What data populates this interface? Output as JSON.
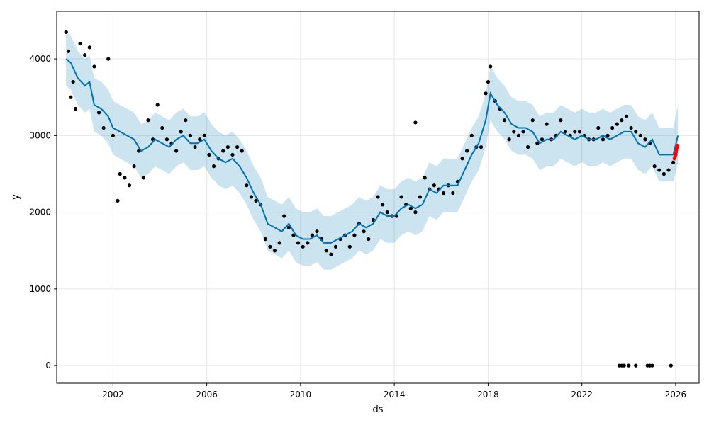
{
  "chart_data": {
    "type": "line",
    "title": "",
    "xlabel": "ds",
    "ylabel": "y",
    "xlim": [
      1999.6,
      2027.0
    ],
    "ylim": [
      -230,
      4620
    ],
    "grid": true,
    "x_ticks": [
      2002,
      2006,
      2010,
      2014,
      2018,
      2022,
      2026
    ],
    "x_tick_labels": [
      "2002",
      "2006",
      "2010",
      "2014",
      "2018",
      "2022",
      "2026"
    ],
    "y_ticks": [
      0,
      1000,
      2000,
      3000,
      4000
    ],
    "y_tick_labels": [
      "0",
      "1000",
      "2000",
      "3000",
      "4000"
    ],
    "colors": {
      "observed": "#000000",
      "forecast_line": "#0072B2",
      "uncertainty": "#0072B2",
      "future_points": "#ff0000"
    },
    "series": [
      {
        "kind": "observed_points",
        "x": [
          2000.0,
          2000.1,
          2000.2,
          2000.3,
          2000.4,
          2000.6,
          2000.8,
          2001.0,
          2001.2,
          2001.4,
          2001.6,
          2001.8,
          2002.0,
          2002.2,
          2002.3,
          2002.5,
          2002.7,
          2002.9,
          2003.1,
          2003.3,
          2003.5,
          2003.7,
          2003.9,
          2004.1,
          2004.3,
          2004.5,
          2004.7,
          2004.9,
          2005.1,
          2005.3,
          2005.5,
          2005.7,
          2005.9,
          2006.1,
          2006.3,
          2006.5,
          2006.7,
          2006.9,
          2007.1,
          2007.3,
          2007.5,
          2007.7,
          2007.9,
          2008.1,
          2008.3,
          2008.5,
          2008.7,
          2008.9,
          2009.1,
          2009.3,
          2009.5,
          2009.7,
          2009.9,
          2010.1,
          2010.3,
          2010.5,
          2010.7,
          2010.9,
          2011.1,
          2011.3,
          2011.5,
          2011.7,
          2011.9,
          2012.1,
          2012.3,
          2012.5,
          2012.7,
          2012.9,
          2013.1,
          2013.3,
          2013.5,
          2013.7,
          2013.9,
          2014.1,
          2014.3,
          2014.5,
          2014.7,
          2014.9,
          2015.1,
          2015.3,
          2015.5,
          2015.7,
          2015.9,
          2016.1,
          2016.3,
          2016.5,
          2016.7,
          2016.9,
          2017.1,
          2017.3,
          2017.5,
          2017.7,
          2017.9,
          2018.0,
          2018.1,
          2018.3,
          2018.5,
          2018.7,
          2018.9,
          2019.1,
          2019.3,
          2019.5,
          2019.7,
          2019.9,
          2020.1,
          2020.3,
          2020.5,
          2020.7,
          2020.9,
          2021.1,
          2021.3,
          2021.5,
          2021.7,
          2021.9,
          2022.1,
          2022.3,
          2022.5,
          2022.7,
          2022.9,
          2023.1,
          2023.3,
          2023.5,
          2023.7,
          2023.9,
          2024.1,
          2024.3,
          2024.5,
          2024.7,
          2024.9,
          2025.1,
          2025.3,
          2025.5,
          2025.7,
          2025.9,
          2026.0
        ],
        "y": [
          4350,
          4100,
          3500,
          3700,
          3350,
          4200,
          4050,
          4150,
          3900,
          3300,
          3100,
          4000,
          3000,
          2150,
          2500,
          2450,
          2350,
          2600,
          2800,
          2450,
          3200,
          2950,
          3400,
          3100,
          2950,
          2900,
          2800,
          3050,
          3200,
          3000,
          2850,
          2950,
          3000,
          2750,
          2600,
          2700,
          2800,
          2850,
          2750,
          2850,
          2800,
          2350,
          2200,
          2150,
          2100,
          1650,
          1550,
          1500,
          1600,
          1950,
          1800,
          1700,
          1600,
          1550,
          1600,
          1700,
          1750,
          1650,
          1500,
          1450,
          1550,
          1650,
          1700,
          1550,
          1700,
          1850,
          1750,
          1650,
          1900,
          2200,
          2100,
          2000,
          1950,
          1950,
          2200,
          2100,
          2050,
          2000,
          2200,
          2450,
          2300,
          2350,
          2300,
          2250,
          2350,
          2250,
          2400,
          2700,
          2800,
          3000,
          2850,
          2850,
          3550,
          3700,
          3900,
          3450,
          3350,
          3200,
          2950,
          3050,
          3000,
          3050,
          2850,
          3200,
          2900,
          2950,
          3150,
          2950,
          3000,
          3200,
          3050,
          3000,
          3050,
          3050,
          3000,
          2950,
          2950,
          3100,
          2950,
          3000,
          3100,
          3150,
          3200,
          3250,
          3100,
          3050,
          3000,
          2950,
          2900,
          2600,
          2550,
          2500,
          2550,
          2650,
          2750
        ]
      },
      {
        "kind": "outlier_points",
        "x": [
          2023.6,
          2023.7,
          2023.8,
          2024.0,
          2024.3,
          2024.8,
          2024.9,
          2025.0,
          2025.8
        ],
        "y": [
          0,
          0,
          0,
          0,
          0,
          0,
          0,
          0,
          0
        ]
      },
      {
        "kind": "isolated_point",
        "x": [
          2014.9
        ],
        "y": [
          3170
        ]
      },
      {
        "kind": "forecast",
        "x": [
          2000.0,
          2000.2,
          2000.5,
          2000.8,
          2001.0,
          2001.2,
          2001.5,
          2001.8,
          2002.0,
          2002.3,
          2002.6,
          2002.9,
          2003.2,
          2003.5,
          2003.8,
          2004.1,
          2004.4,
          2004.7,
          2005.0,
          2005.3,
          2005.6,
          2005.9,
          2006.2,
          2006.5,
          2006.8,
          2007.1,
          2007.4,
          2007.7,
          2008.0,
          2008.3,
          2008.6,
          2008.9,
          2009.2,
          2009.5,
          2009.8,
          2010.1,
          2010.4,
          2010.7,
          2011.0,
          2011.3,
          2011.6,
          2011.9,
          2012.2,
          2012.5,
          2012.8,
          2013.1,
          2013.4,
          2013.7,
          2014.0,
          2014.3,
          2014.6,
          2014.9,
          2015.2,
          2015.5,
          2015.8,
          2016.1,
          2016.4,
          2016.7,
          2017.0,
          2017.3,
          2017.6,
          2017.9,
          2018.1,
          2018.4,
          2018.7,
          2019.0,
          2019.3,
          2019.6,
          2019.9,
          2020.2,
          2020.5,
          2020.8,
          2021.1,
          2021.4,
          2021.7,
          2022.0,
          2022.3,
          2022.6,
          2022.9,
          2023.2,
          2023.5,
          2023.8,
          2024.1,
          2024.4,
          2024.7,
          2025.0,
          2025.3,
          2025.6,
          2025.9,
          2026.1
        ],
        "y": [
          4000,
          3950,
          3750,
          3650,
          3700,
          3400,
          3350,
          3250,
          3100,
          3050,
          3000,
          2950,
          2800,
          2850,
          2950,
          2900,
          2850,
          2950,
          3000,
          2900,
          2900,
          2950,
          2800,
          2700,
          2650,
          2700,
          2600,
          2450,
          2250,
          2100,
          1850,
          1800,
          1750,
          1850,
          1700,
          1650,
          1650,
          1700,
          1600,
          1600,
          1650,
          1700,
          1750,
          1850,
          1800,
          1850,
          2000,
          1950,
          1950,
          2050,
          2100,
          2050,
          2100,
          2300,
          2250,
          2350,
          2350,
          2350,
          2550,
          2750,
          2900,
          3200,
          3550,
          3400,
          3300,
          3150,
          3100,
          3100,
          3050,
          2900,
          2950,
          2950,
          3050,
          3000,
          2950,
          3000,
          2950,
          2950,
          3000,
          2950,
          3000,
          3050,
          3050,
          2900,
          2850,
          2950,
          2750,
          2750,
          2750,
          3000
        ]
      },
      {
        "kind": "uncertainty_upper",
        "x": [
          2000.0,
          2000.2,
          2000.5,
          2000.8,
          2001.0,
          2001.2,
          2001.5,
          2001.8,
          2002.0,
          2002.3,
          2002.6,
          2002.9,
          2003.2,
          2003.5,
          2003.8,
          2004.1,
          2004.4,
          2004.7,
          2005.0,
          2005.3,
          2005.6,
          2005.9,
          2006.2,
          2006.5,
          2006.8,
          2007.1,
          2007.4,
          2007.7,
          2008.0,
          2008.3,
          2008.6,
          2008.9,
          2009.2,
          2009.5,
          2009.8,
          2010.1,
          2010.4,
          2010.7,
          2011.0,
          2011.3,
          2011.6,
          2011.9,
          2012.2,
          2012.5,
          2012.8,
          2013.1,
          2013.4,
          2013.7,
          2014.0,
          2014.3,
          2014.6,
          2014.9,
          2015.2,
          2015.5,
          2015.8,
          2016.1,
          2016.4,
          2016.7,
          2017.0,
          2017.3,
          2017.6,
          2017.9,
          2018.1,
          2018.4,
          2018.7,
          2019.0,
          2019.3,
          2019.6,
          2019.9,
          2020.2,
          2020.5,
          2020.8,
          2021.1,
          2021.4,
          2021.7,
          2022.0,
          2022.3,
          2022.6,
          2022.9,
          2023.2,
          2023.5,
          2023.8,
          2024.1,
          2024.4,
          2024.7,
          2025.0,
          2025.3,
          2025.6,
          2025.9,
          2026.1
        ],
        "y": [
          4350,
          4300,
          4100,
          4000,
          4050,
          3750,
          3700,
          3600,
          3450,
          3400,
          3350,
          3300,
          3150,
          3200,
          3300,
          3250,
          3200,
          3300,
          3350,
          3250,
          3250,
          3300,
          3150,
          3050,
          3000,
          3050,
          2950,
          2800,
          2600,
          2450,
          2200,
          2150,
          2100,
          2200,
          2050,
          2000,
          2000,
          2050,
          1950,
          1950,
          2000,
          2050,
          2100,
          2200,
          2150,
          2200,
          2350,
          2300,
          2300,
          2400,
          2450,
          2400,
          2450,
          2650,
          2600,
          2700,
          2700,
          2700,
          2900,
          3100,
          3250,
          3550,
          3900,
          3750,
          3650,
          3500,
          3450,
          3450,
          3400,
          3250,
          3300,
          3300,
          3400,
          3350,
          3300,
          3350,
          3300,
          3300,
          3350,
          3300,
          3350,
          3400,
          3400,
          3250,
          3200,
          3300,
          3100,
          3100,
          3100,
          3400
        ]
      },
      {
        "kind": "uncertainty_lower",
        "x": [
          2000.0,
          2000.2,
          2000.5,
          2000.8,
          2001.0,
          2001.2,
          2001.5,
          2001.8,
          2002.0,
          2002.3,
          2002.6,
          2002.9,
          2003.2,
          2003.5,
          2003.8,
          2004.1,
          2004.4,
          2004.7,
          2005.0,
          2005.3,
          2005.6,
          2005.9,
          2006.2,
          2006.5,
          2006.8,
          2007.1,
          2007.4,
          2007.7,
          2008.0,
          2008.3,
          2008.6,
          2008.9,
          2009.2,
          2009.5,
          2009.8,
          2010.1,
          2010.4,
          2010.7,
          2011.0,
          2011.3,
          2011.6,
          2011.9,
          2012.2,
          2012.5,
          2012.8,
          2013.1,
          2013.4,
          2013.7,
          2014.0,
          2014.3,
          2014.6,
          2014.9,
          2015.2,
          2015.5,
          2015.8,
          2016.1,
          2016.4,
          2016.7,
          2017.0,
          2017.3,
          2017.6,
          2017.9,
          2018.1,
          2018.4,
          2018.7,
          2019.0,
          2019.3,
          2019.6,
          2019.9,
          2020.2,
          2020.5,
          2020.8,
          2021.1,
          2021.4,
          2021.7,
          2022.0,
          2022.3,
          2022.6,
          2022.9,
          2023.2,
          2023.5,
          2023.8,
          2024.1,
          2024.4,
          2024.7,
          2025.0,
          2025.3,
          2025.6,
          2025.9,
          2026.1
        ],
        "y": [
          3650,
          3600,
          3400,
          3300,
          3350,
          3050,
          3000,
          2900,
          2750,
          2700,
          2650,
          2600,
          2450,
          2500,
          2600,
          2550,
          2500,
          2600,
          2650,
          2550,
          2550,
          2600,
          2450,
          2350,
          2300,
          2350,
          2250,
          2100,
          1900,
          1750,
          1500,
          1450,
          1400,
          1500,
          1350,
          1300,
          1300,
          1350,
          1250,
          1250,
          1300,
          1350,
          1400,
          1500,
          1450,
          1500,
          1650,
          1600,
          1600,
          1700,
          1750,
          1700,
          1750,
          1950,
          1900,
          2000,
          2000,
          2000,
          2200,
          2400,
          2550,
          2850,
          3200,
          3050,
          2950,
          2800,
          2750,
          2750,
          2700,
          2550,
          2600,
          2600,
          2700,
          2650,
          2600,
          2650,
          2600,
          2600,
          2650,
          2600,
          2650,
          2700,
          2700,
          2550,
          2500,
          2600,
          2400,
          2400,
          2400,
          2650
        ]
      },
      {
        "kind": "future_points",
        "x": [
          2025.95,
          2025.97,
          2025.99,
          2026.01,
          2026.03,
          2026.05,
          2026.07
        ],
        "y": [
          2700,
          2720,
          2750,
          2780,
          2810,
          2840,
          2870
        ]
      }
    ]
  }
}
